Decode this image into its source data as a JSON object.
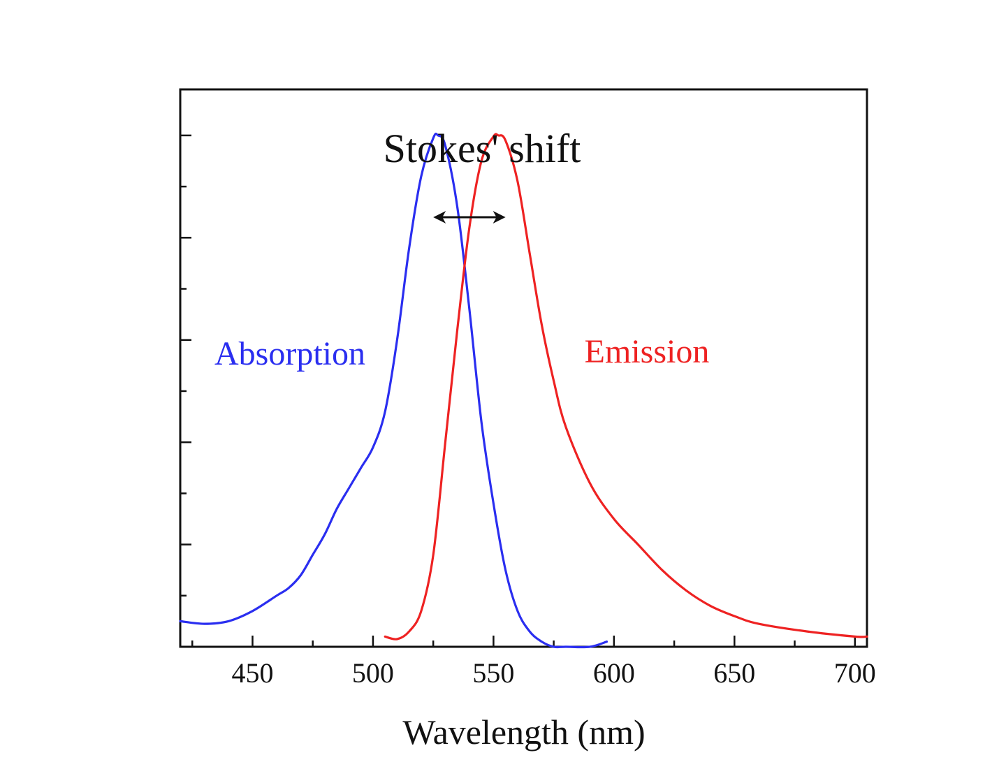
{
  "chart_data": {
    "type": "line",
    "title": "",
    "xlabel": "Wavelength (nm)",
    "ylabel": "",
    "xlim": [
      420,
      705
    ],
    "ylim": [
      0,
      1.09
    ],
    "x_ticks": [
      450,
      500,
      550,
      600,
      650,
      700
    ],
    "x_tick_labels": [
      "450",
      "500",
      "550",
      "600",
      "650",
      "700"
    ],
    "y_tick_labels_shown": false,
    "grid": false,
    "legend": "none",
    "annotations": {
      "shift_label": "Stokes' shift",
      "shift_arrow_from": 525,
      "shift_arrow_to": 555,
      "absorption_label": "Absorption",
      "emission_label": "Emission"
    },
    "series": [
      {
        "name": "Absorption",
        "color": "#2a2ef0",
        "x": [
          420,
          430,
          440,
          450,
          460,
          465,
          470,
          475,
          480,
          485,
          490,
          495,
          500,
          505,
          510,
          515,
          520,
          525,
          527,
          530,
          535,
          540,
          545,
          550,
          555,
          560,
          565,
          570,
          575,
          580,
          590,
          597
        ],
        "y": [
          0.05,
          0.045,
          0.05,
          0.07,
          0.1,
          0.115,
          0.14,
          0.18,
          0.22,
          0.27,
          0.31,
          0.35,
          0.39,
          0.46,
          0.6,
          0.78,
          0.92,
          0.995,
          1.0,
          0.98,
          0.86,
          0.66,
          0.44,
          0.28,
          0.15,
          0.07,
          0.03,
          0.01,
          0.0,
          0.0,
          0.0,
          0.01
        ]
      },
      {
        "name": "Emission",
        "color": "#ee2222",
        "x": [
          505,
          510,
          515,
          520,
          525,
          530,
          535,
          540,
          545,
          550,
          552,
          555,
          560,
          565,
          570,
          575,
          580,
          590,
          600,
          610,
          620,
          630,
          640,
          650,
          660,
          680,
          700,
          705
        ],
        "y": [
          0.02,
          0.015,
          0.03,
          0.07,
          0.18,
          0.4,
          0.62,
          0.82,
          0.95,
          0.998,
          1.0,
          0.99,
          0.91,
          0.77,
          0.63,
          0.52,
          0.43,
          0.32,
          0.25,
          0.2,
          0.15,
          0.11,
          0.08,
          0.06,
          0.045,
          0.03,
          0.02,
          0.02
        ]
      }
    ]
  }
}
